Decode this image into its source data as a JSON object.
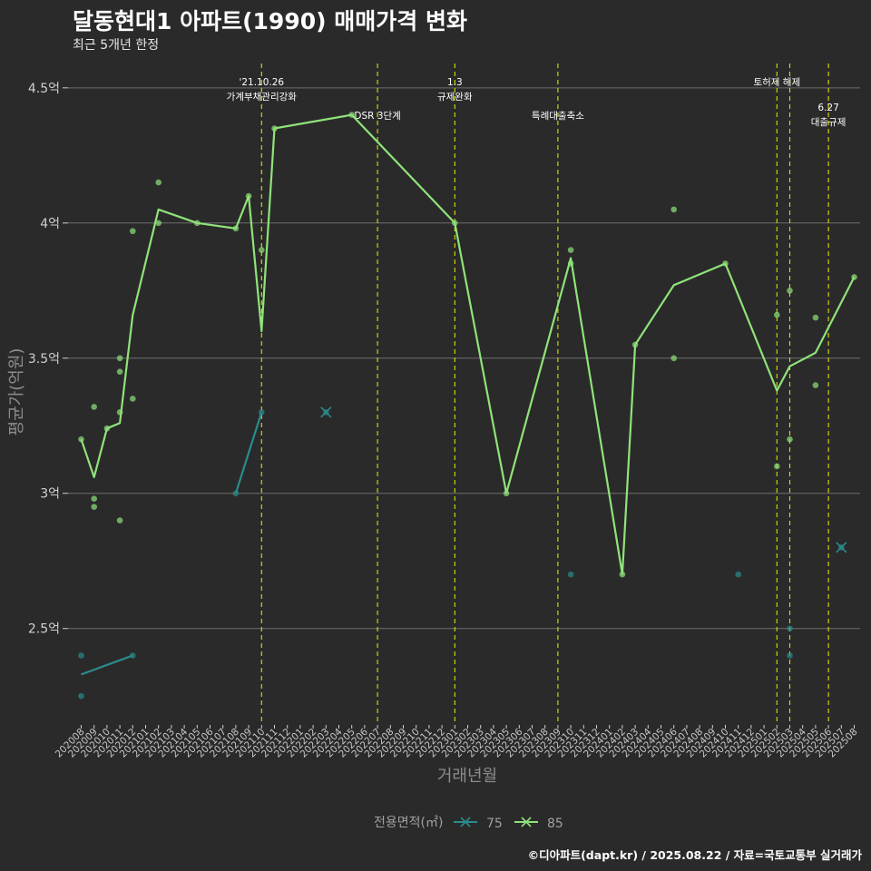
{
  "title": "달동현대1 아파트(1990) 매매가격 변화",
  "subtitle": "최근 5개년 한정",
  "caption": "©디아파트(dapt.kr) / 2025.08.22 / 자료=국토교통부 실거래가",
  "colors": {
    "background": "#2b2a2a",
    "grid": "#6e6e6e",
    "event_line": "#d9e000",
    "series_75": "#2a8c8c",
    "series_85": "#8fe37a"
  },
  "chart_data": {
    "type": "line",
    "title": "달동현대1 아파트(1990) 매매가격 변화",
    "xlabel": "거래년월",
    "ylabel": "평균가(억원)",
    "ylim": [
      2.15,
      4.59
    ],
    "y_ticks": [
      {
        "value": 2.5,
        "label": "2.5억"
      },
      {
        "value": 3.0,
        "label": "3억"
      },
      {
        "value": 3.5,
        "label": "3.5억"
      },
      {
        "value": 4.0,
        "label": "4억"
      },
      {
        "value": 4.5,
        "label": "4.5억"
      }
    ],
    "categories": [
      "202008",
      "202009",
      "202010",
      "202011",
      "202012",
      "202101",
      "202102",
      "202103",
      "202104",
      "202105",
      "202106",
      "202107",
      "202108",
      "202109",
      "202110",
      "202111",
      "202112",
      "202201",
      "202202",
      "202203",
      "202204",
      "202205",
      "202206",
      "202207",
      "202208",
      "202209",
      "202210",
      "202211",
      "202212",
      "202301",
      "202302",
      "202303",
      "202304",
      "202305",
      "202306",
      "202307",
      "202308",
      "202309",
      "202310",
      "202311",
      "202312",
      "202401",
      "202402",
      "202403",
      "202404",
      "202405",
      "202406",
      "202407",
      "202408",
      "202409",
      "202410",
      "202411",
      "202412",
      "202501",
      "202502",
      "202503",
      "202504",
      "202505",
      "202506",
      "202507",
      "202508"
    ],
    "legend": {
      "title": "전용면적(㎡)",
      "items": [
        "75",
        "85"
      ],
      "position": "bottom"
    },
    "events": [
      {
        "x": 14.0,
        "lines": [
          "'21.10.26",
          "가계부채관리강화"
        ],
        "row": 0
      },
      {
        "x": 23.0,
        "lines": [
          "DSR 3단계"
        ],
        "row": 1
      },
      {
        "x": 29.0,
        "lines": [
          "1.3",
          "규제완화"
        ],
        "row": 0
      },
      {
        "x": 37.0,
        "lines": [
          "특례대출축소"
        ],
        "row": 1
      },
      {
        "x": 54.0,
        "lines": [
          "토허제 해제"
        ],
        "row": 0
      },
      {
        "x": 55.0,
        "lines": [],
        "row": 0
      },
      {
        "x": 58.0,
        "lines": [
          "6.27",
          "대출규제"
        ],
        "row": 2
      }
    ],
    "series": [
      {
        "name": "75",
        "line_segments": [
          [
            {
              "x": 0,
              "y": 2.33
            },
            {
              "x": 4,
              "y": 2.4
            }
          ],
          [
            {
              "x": 12,
              "y": 3.0
            },
            {
              "x": 14,
              "y": 3.3
            }
          ]
        ],
        "points": [
          {
            "x": 0,
            "y": 2.4
          },
          {
            "x": 0,
            "y": 2.25
          },
          {
            "x": 4,
            "y": 2.4
          },
          {
            "x": 12,
            "y": 3.0
          },
          {
            "x": 14,
            "y": 3.3
          },
          {
            "x": 38,
            "y": 2.7
          },
          {
            "x": 51,
            "y": 2.7
          },
          {
            "x": 55,
            "y": 2.5
          },
          {
            "x": 55,
            "y": 2.4
          }
        ],
        "x_markers": [
          {
            "x": 19,
            "y": 3.3
          },
          {
            "x": 59,
            "y": 2.8
          }
        ]
      },
      {
        "name": "85",
        "line_segments": [
          [
            {
              "x": 0,
              "y": 3.2
            },
            {
              "x": 1,
              "y": 3.06
            },
            {
              "x": 2,
              "y": 3.24
            },
            {
              "x": 3,
              "y": 3.26
            },
            {
              "x": 4,
              "y": 3.66
            },
            {
              "x": 6,
              "y": 4.05
            },
            {
              "x": 9,
              "y": 4.0
            },
            {
              "x": 12,
              "y": 3.98
            },
            {
              "x": 13,
              "y": 4.1
            },
            {
              "x": 14,
              "y": 3.6
            },
            {
              "x": 15,
              "y": 4.35
            },
            {
              "x": 21,
              "y": 4.4
            },
            {
              "x": 29,
              "y": 4.0
            },
            {
              "x": 33,
              "y": 3.0
            },
            {
              "x": 38,
              "y": 3.87
            },
            {
              "x": 42,
              "y": 2.7
            },
            {
              "x": 43,
              "y": 3.55
            },
            {
              "x": 46,
              "y": 3.77
            },
            {
              "x": 50,
              "y": 3.85
            },
            {
              "x": 54,
              "y": 3.38
            },
            {
              "x": 55,
              "y": 3.47
            },
            {
              "x": 57,
              "y": 3.52
            },
            {
              "x": 60,
              "y": 3.8
            }
          ]
        ],
        "points": [
          {
            "x": 0,
            "y": 3.2
          },
          {
            "x": 1,
            "y": 3.32
          },
          {
            "x": 1,
            "y": 2.98
          },
          {
            "x": 1,
            "y": 2.95
          },
          {
            "x": 2,
            "y": 3.24
          },
          {
            "x": 3,
            "y": 3.5
          },
          {
            "x": 3,
            "y": 3.45
          },
          {
            "x": 3,
            "y": 3.3
          },
          {
            "x": 3,
            "y": 2.9
          },
          {
            "x": 4,
            "y": 3.97
          },
          {
            "x": 4,
            "y": 3.35
          },
          {
            "x": 6,
            "y": 4.15
          },
          {
            "x": 6,
            "y": 4.0
          },
          {
            "x": 9,
            "y": 4.0
          },
          {
            "x": 12,
            "y": 3.98
          },
          {
            "x": 13,
            "y": 4.1
          },
          {
            "x": 14,
            "y": 3.9
          },
          {
            "x": 15,
            "y": 4.35
          },
          {
            "x": 21,
            "y": 4.4
          },
          {
            "x": 29,
            "y": 4.0
          },
          {
            "x": 33,
            "y": 3.0
          },
          {
            "x": 38,
            "y": 3.9
          },
          {
            "x": 38,
            "y": 3.85
          },
          {
            "x": 42,
            "y": 2.7
          },
          {
            "x": 43,
            "y": 3.55
          },
          {
            "x": 46,
            "y": 4.05
          },
          {
            "x": 46,
            "y": 3.5
          },
          {
            "x": 50,
            "y": 3.85
          },
          {
            "x": 54,
            "y": 3.66
          },
          {
            "x": 54,
            "y": 3.1
          },
          {
            "x": 55,
            "y": 3.75
          },
          {
            "x": 55,
            "y": 3.2
          },
          {
            "x": 57,
            "y": 3.65
          },
          {
            "x": 57,
            "y": 3.4
          },
          {
            "x": 60,
            "y": 3.8
          }
        ],
        "x_markers": []
      }
    ]
  }
}
